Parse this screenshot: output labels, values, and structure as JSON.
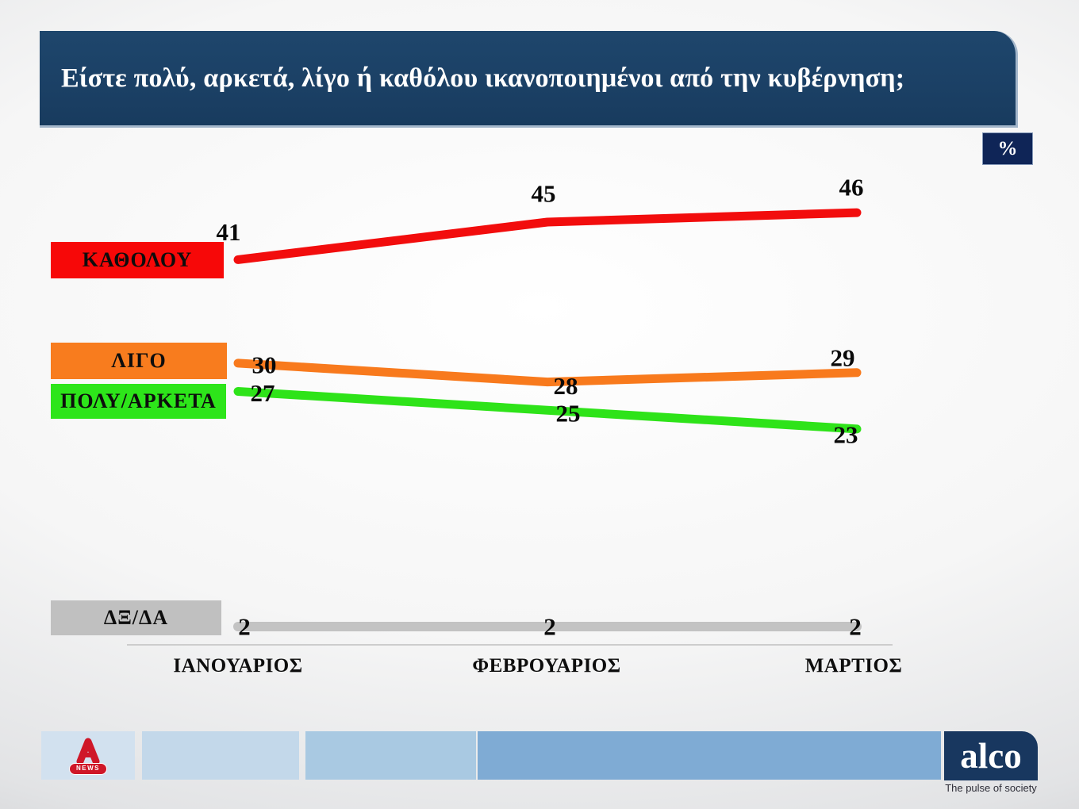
{
  "header": {
    "title": "Είστε πολύ, αρκετά, λίγο ή καθόλου ικανοποιημένοι από την κυβέρνηση;"
  },
  "percent_badge": "%",
  "chart_data": {
    "type": "line",
    "categories": [
      "ΙΑΝΟΥΑΡΙΟΣ",
      "ΦΕΒΡΟΥΑΡΙΟΣ",
      "ΜΑΡΤΙΟΣ"
    ],
    "series": [
      {
        "name": "ΚΑΘΟΛΟΥ",
        "values": [
          41,
          45,
          46
        ],
        "color": "#f20d0d",
        "legend_color": "#f70808"
      },
      {
        "name": "ΛΙΓΟ",
        "values": [
          30,
          28,
          29
        ],
        "color": "#f87a1d",
        "legend_color": "#f87c1e"
      },
      {
        "name": "ΠΟΛΥ/ΑΡΚΕΤΑ",
        "values": [
          27,
          25,
          23
        ],
        "color": "#2ee319",
        "legend_color": "#2de51a"
      },
      {
        "name": "ΔΞ/ΔΑ",
        "values": [
          2,
          2,
          2
        ],
        "color": "#c3c3c3",
        "legend_color": "#c0c0c0"
      }
    ],
    "unit": "%",
    "value_labels": true,
    "grid": false,
    "legend_position": "left",
    "ylim": [
      0,
      50
    ]
  },
  "footer": {
    "alpha_news": {
      "letter_label": "A",
      "news_label": "NEWS",
      "brand_red": "#cf1728",
      "block_color": "#d2e1ef"
    },
    "blocks": [
      {
        "color": "#c3d8ea"
      },
      {
        "color": "#a9c9e2"
      },
      {
        "color": "#7fabd4"
      }
    ],
    "alco": {
      "logo_text": "alco",
      "tagline": "The pulse of society",
      "brand_navy": "#18375f"
    }
  }
}
